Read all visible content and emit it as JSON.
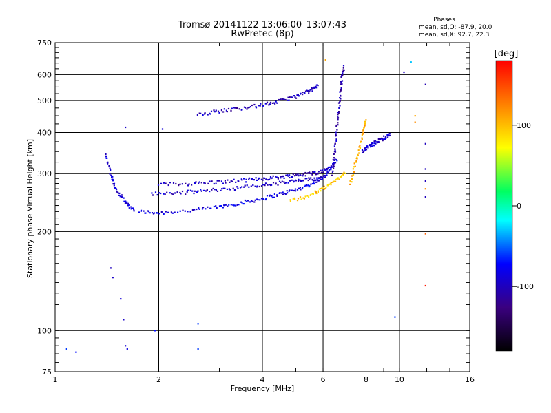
{
  "chart_data": {
    "type": "scatter",
    "title": "Tromsø 20141122 13:06:00–13:07:43",
    "subtitle": "RwPretec (8p)",
    "xlabel": "Frequency [MHz]",
    "ylabel": "Stationary phase Virtual Height [km]",
    "x_scale": "log",
    "y_scale": "log",
    "xlim": [
      1,
      16
    ],
    "ylim": [
      75,
      750
    ],
    "x_ticks": [
      1,
      2,
      4,
      6,
      8,
      10,
      16
    ],
    "y_ticks": [
      75,
      100,
      200,
      300,
      400,
      500,
      600,
      750
    ],
    "y_tick_labels": [
      "75",
      "100",
      "200",
      "300",
      "400",
      "500",
      "600",
      "750"
    ],
    "grid": true,
    "phases_header": "Phases",
    "phases_o": "mean, sd,O: -87.9, 20.0",
    "phases_x": "mean, sd,X:  92.7, 22.3",
    "colorbar": {
      "label": "[deg]",
      "range": [
        -180,
        180
      ],
      "ticks": [
        100,
        0,
        -100
      ]
    },
    "traces": [
      {
        "x": [
          1.75,
          2.0,
          2.5,
          3.0,
          3.5,
          4.0,
          4.5,
          5.0,
          5.5,
          6.0,
          6.3,
          6.6
        ],
        "y": [
          230,
          228,
          232,
          238,
          245,
          252,
          260,
          268,
          278,
          292,
          310,
          335
        ],
        "phase": -85
      },
      {
        "x": [
          2.0,
          2.5,
          3.0,
          3.5,
          4.0,
          4.5,
          5.0,
          5.5,
          6.0,
          6.5
        ],
        "y": [
          278,
          280,
          283,
          286,
          290,
          293,
          297,
          300,
          305,
          320
        ],
        "phase": -100
      },
      {
        "x": [
          1.9,
          2.3,
          2.7,
          3.2,
          3.8,
          4.4,
          5.0,
          5.5,
          6.0
        ],
        "y": [
          260,
          262,
          266,
          270,
          275,
          280,
          285,
          288,
          292
        ],
        "phase": -95
      },
      {
        "x": [
          2.6,
          3.0,
          3.5,
          4.0,
          4.5,
          5.0,
          5.5,
          5.8
        ],
        "y": [
          455,
          465,
          475,
          485,
          498,
          515,
          535,
          555
        ],
        "phase": -100
      },
      {
        "x": [
          6.4,
          6.5,
          6.6,
          6.7,
          6.8,
          6.9
        ],
        "y": [
          300,
          360,
          430,
          500,
          580,
          640
        ],
        "phase": -105
      },
      {
        "x": [
          1.4,
          1.45,
          1.5,
          1.6,
          1.7
        ],
        "y": [
          340,
          300,
          270,
          245,
          232
        ],
        "phase": -90
      },
      {
        "x": [
          4.8,
          5.5,
          6.0,
          6.5,
          7.0
        ],
        "y": [
          248,
          258,
          270,
          285,
          305
        ],
        "phase": 95
      },
      {
        "x": [
          7.2,
          7.5,
          7.8,
          8.0
        ],
        "y": [
          280,
          330,
          390,
          440
        ],
        "phase": 105
      },
      {
        "x": [
          7.8,
          8.2,
          8.6,
          9.0,
          9.4
        ],
        "y": [
          350,
          365,
          375,
          385,
          395
        ],
        "phase": -95
      }
    ],
    "scatter_points": [
      {
        "x": 1.08,
        "y": 88,
        "phase": -60
      },
      {
        "x": 1.15,
        "y": 86,
        "phase": -70
      },
      {
        "x": 1.45,
        "y": 155,
        "phase": -100
      },
      {
        "x": 1.47,
        "y": 145,
        "phase": -95
      },
      {
        "x": 1.55,
        "y": 125,
        "phase": -90
      },
      {
        "x": 1.58,
        "y": 108,
        "phase": -95
      },
      {
        "x": 1.6,
        "y": 90,
        "phase": -90
      },
      {
        "x": 1.62,
        "y": 88,
        "phase": -85
      },
      {
        "x": 1.95,
        "y": 100,
        "phase": -70
      },
      {
        "x": 2.6,
        "y": 105,
        "phase": -60
      },
      {
        "x": 2.6,
        "y": 88,
        "phase": -60
      },
      {
        "x": 2.05,
        "y": 410,
        "phase": -90
      },
      {
        "x": 1.6,
        "y": 415,
        "phase": -95
      },
      {
        "x": 9.7,
        "y": 110,
        "phase": -60
      },
      {
        "x": 10.3,
        "y": 610,
        "phase": -100
      },
      {
        "x": 10.8,
        "y": 655,
        "phase": -30
      },
      {
        "x": 11.1,
        "y": 450,
        "phase": 110
      },
      {
        "x": 11.1,
        "y": 430,
        "phase": 120
      },
      {
        "x": 11.9,
        "y": 560,
        "phase": -105
      },
      {
        "x": 11.9,
        "y": 370,
        "phase": -100
      },
      {
        "x": 11.9,
        "y": 310,
        "phase": -100
      },
      {
        "x": 11.9,
        "y": 285,
        "phase": -100
      },
      {
        "x": 11.9,
        "y": 270,
        "phase": 120
      },
      {
        "x": 11.9,
        "y": 255,
        "phase": -100
      },
      {
        "x": 11.9,
        "y": 197,
        "phase": 140
      },
      {
        "x": 11.9,
        "y": 137,
        "phase": 170
      },
      {
        "x": 6.1,
        "y": 665,
        "phase": 110
      }
    ]
  }
}
